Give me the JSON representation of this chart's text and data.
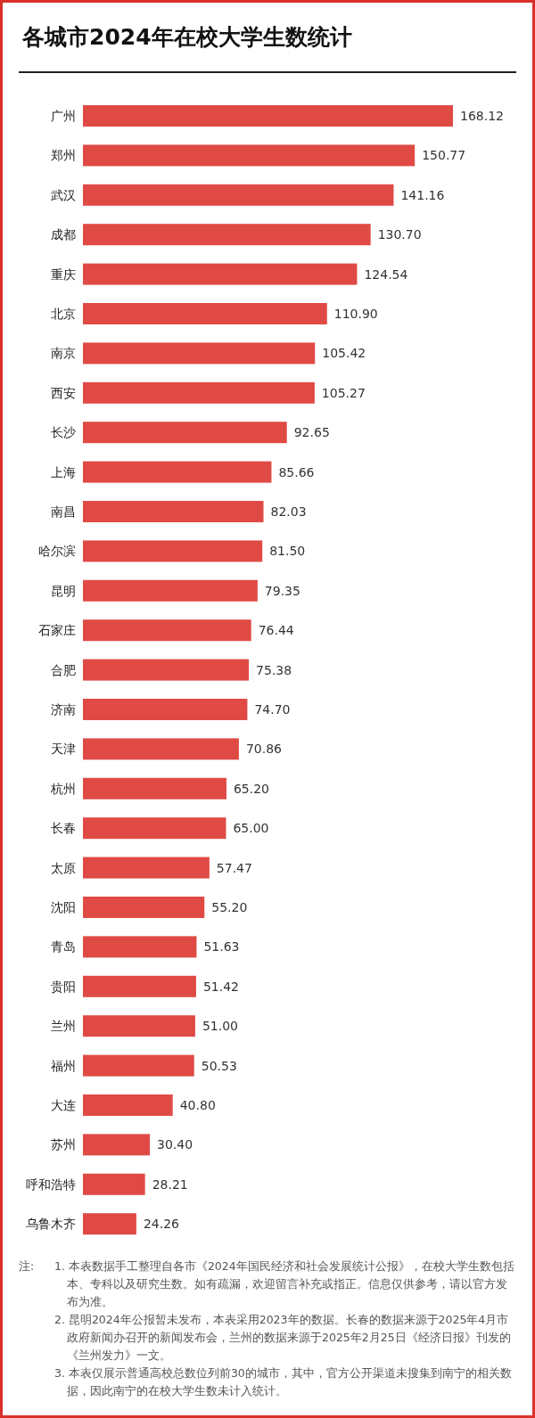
{
  "chart_data": {
    "type": "bar",
    "orientation": "horizontal",
    "title": "各城市2024年在校大学生数统计",
    "categories": [
      "广州",
      "郑州",
      "武汉",
      "成都",
      "重庆",
      "北京",
      "南京",
      "西安",
      "长沙",
      "上海",
      "南昌",
      "哈尔滨",
      "昆明",
      "石家庄",
      "合肥",
      "济南",
      "天津",
      "杭州",
      "长春",
      "太原",
      "沈阳",
      "青岛",
      "贵阳",
      "兰州",
      "福州",
      "大连",
      "苏州",
      "呼和浩特",
      "乌鲁木齐"
    ],
    "values": [
      168.12,
      150.77,
      141.16,
      130.7,
      124.54,
      110.9,
      105.42,
      105.27,
      92.65,
      85.66,
      82.03,
      81.5,
      79.35,
      76.44,
      75.38,
      74.7,
      70.86,
      65.2,
      65.0,
      57.47,
      55.2,
      51.63,
      51.42,
      51.0,
      50.53,
      40.8,
      30.4,
      28.21,
      24.26
    ],
    "value_labels": [
      "168.12",
      "150.77",
      "141.16",
      "130.70",
      "124.54",
      "110.90",
      "105.42",
      "105.27",
      "92.65",
      "85.66",
      "82.03",
      "81.50",
      "79.35",
      "76.44",
      "75.38",
      "74.70",
      "70.86",
      "65.20",
      "65.00",
      "57.47",
      "55.20",
      "51.63",
      "51.42",
      "51.00",
      "50.53",
      "40.80",
      "30.40",
      "28.21",
      "24.26"
    ],
    "color": "#e04a45",
    "annotations": [
      "注:",
      "1. 本表数据手工整理自各市《2024年国民经济和社会发展统计公报》，在校大学生数包括本、专科以及研究生数。如有疏漏，欢迎留言补充或指正。信息仅供参考，请以官方发布为准。",
      "2. 昆明2024年公报暂未发布，本表采用2023年的数据。长春的数据来源于2025年4月市政府新闻办召开的新闻发布会，兰州的数据来源于2025年2月25日《经济日报》刊发的《兰州发力》一文。",
      "3. 本表仅展示普通高校总数位列前30的城市，其中，官方公开渠道未搜集到南宁的相关数据，因此南宁的在校大学生数未计入统计。"
    ]
  }
}
